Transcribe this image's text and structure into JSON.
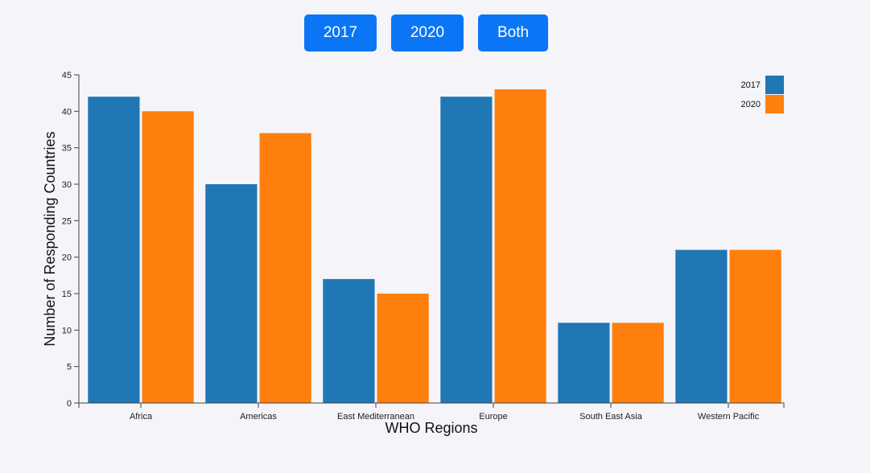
{
  "toolbar": {
    "buttons": [
      {
        "label": "2017"
      },
      {
        "label": "2020"
      },
      {
        "label": "Both"
      }
    ]
  },
  "colors": {
    "button_bg": "#0a76f6",
    "series_2017": "#1f77b4",
    "series_2020": "#ff7f0e"
  },
  "chart_data": {
    "type": "bar",
    "categories": [
      "Africa",
      "Americas",
      "East Mediterranean",
      "Europe",
      "South East Asia",
      "Western Pacific"
    ],
    "series": [
      {
        "name": "2017",
        "values": [
          42,
          30,
          17,
          42,
          11,
          21
        ],
        "color": "#1f77b4"
      },
      {
        "name": "2020",
        "values": [
          40,
          37,
          15,
          43,
          11,
          21
        ],
        "color": "#ff7f0e"
      }
    ],
    "xlabel": "WHO Regions",
    "ylabel": "Number of Responding Countries",
    "ylim": [
      0,
      45
    ],
    "yticks": [
      0,
      5,
      10,
      15,
      20,
      25,
      30,
      35,
      40,
      45
    ],
    "grid": false,
    "legend_position": "top-right"
  }
}
